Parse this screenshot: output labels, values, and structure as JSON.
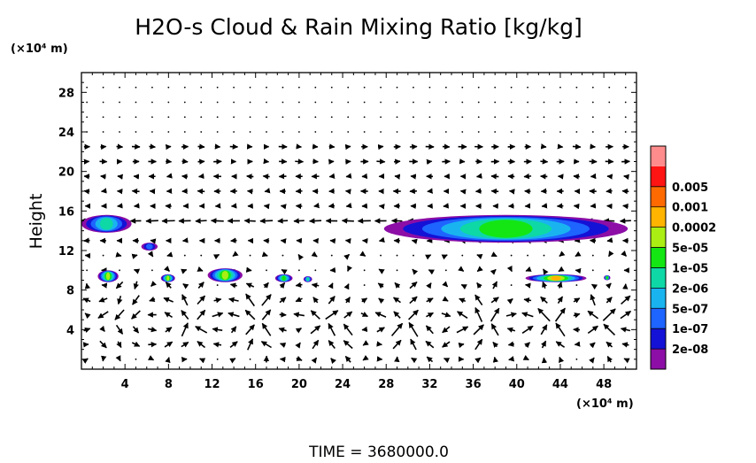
{
  "chart_data": {
    "type": "heatmap",
    "title": "H2O-s Cloud & Rain Mixing Ratio [kg/kg]",
    "ylabel": "Height",
    "y_unit": "(×10⁴ m)",
    "x_unit": "(×10⁴ m)",
    "xlim": [
      0,
      51
    ],
    "ylim": [
      0,
      30
    ],
    "x_ticks": [
      4,
      8,
      12,
      16,
      20,
      24,
      28,
      32,
      36,
      40,
      44,
      48
    ],
    "y_ticks": [
      4,
      8,
      12,
      16,
      20,
      24,
      28
    ],
    "x_tick_labels": [
      "4",
      "8",
      "12",
      "16",
      "20",
      "24",
      "28",
      "32",
      "36",
      "40",
      "44",
      "48"
    ],
    "y_tick_labels": [
      "4",
      "8",
      "12",
      "16",
      "20",
      "24",
      "28"
    ],
    "grid": false,
    "colorbar": {
      "levels": [
        "2e-08",
        "1e-07",
        "5e-07",
        "2e-06",
        "1e-05",
        "5e-05",
        "0.0002",
        "0.001",
        "0.005"
      ],
      "colors": [
        "#8c0ea6",
        "#1412d6",
        "#1e64ff",
        "#19b4f0",
        "#0ed8a6",
        "#14e614",
        "#aaee14",
        "#ffb400",
        "#ff6a00",
        "#ff1414",
        "#ff8c8c"
      ]
    },
    "cloud_regions": [
      {
        "x": [
          0,
          4.6
        ],
        "y": [
          13.8,
          15.6
        ],
        "peak_level": "2e-06"
      },
      {
        "x": [
          5.5,
          7.0
        ],
        "y": [
          12.0,
          12.8
        ],
        "peak_level": "1e-07"
      },
      {
        "x": [
          1.5,
          3.4
        ],
        "y": [
          8.8,
          10.0
        ],
        "peak_level": "5e-05"
      },
      {
        "x": [
          7.3,
          8.6
        ],
        "y": [
          8.8,
          9.6
        ],
        "peak_level": "5e-05"
      },
      {
        "x": [
          11.6,
          14.8
        ],
        "y": [
          8.8,
          10.2
        ],
        "peak_level": "5e-05"
      },
      {
        "x": [
          17.8,
          19.4
        ],
        "y": [
          8.8,
          9.6
        ],
        "peak_level": "1e-05"
      },
      {
        "x": [
          20.4,
          21.2
        ],
        "y": [
          8.8,
          9.4
        ],
        "peak_level": "2e-06"
      },
      {
        "x": [
          27.8,
          50.2
        ],
        "y": [
          12.8,
          15.6
        ],
        "peak_level": "1e-05"
      },
      {
        "x": [
          40.8,
          46.4
        ],
        "y": [
          8.8,
          9.6
        ],
        "peak_level": "0.0002"
      },
      {
        "x": [
          48.0,
          48.6
        ],
        "y": [
          9.0,
          9.5
        ],
        "peak_level": "1e-05"
      }
    ],
    "wind_field": {
      "x": [
        0.5,
        2.0,
        3.5,
        5.0,
        6.5,
        8.0,
        9.5,
        11.0,
        12.5,
        14.0,
        15.5,
        17.0,
        18.5,
        20.0,
        21.5,
        23.0,
        24.5,
        26.0,
        27.5,
        29.0,
        30.5,
        32.0,
        33.5,
        35.0,
        36.5,
        38.0,
        39.5,
        41.0,
        42.5,
        44.0,
        45.5,
        47.0,
        48.5,
        50.0
      ],
      "y": [
        1,
        2.5,
        4,
        5.5,
        7,
        8.5,
        10,
        11.5,
        13,
        15,
        16.5,
        18,
        19.5,
        21,
        22.5,
        24,
        25.5,
        27,
        28.5
      ]
    }
  }
}
